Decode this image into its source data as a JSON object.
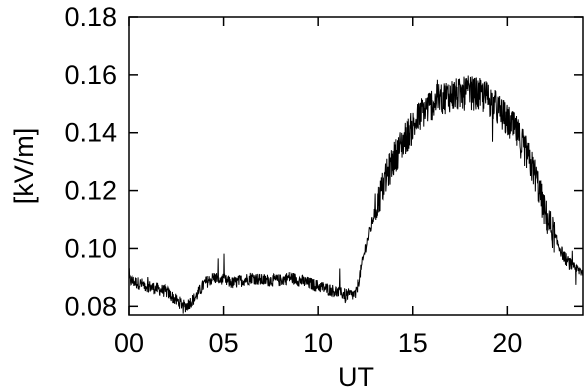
{
  "chart_data": {
    "type": "line",
    "title": "",
    "xlabel": "UT",
    "ylabel": "[kV/m]",
    "xlim": [
      0,
      24
    ],
    "ylim": [
      0.077,
      0.18
    ],
    "x_ticks": [
      0,
      5,
      10,
      15,
      20
    ],
    "x_tick_labels": [
      "00",
      "05",
      "10",
      "15",
      "20"
    ],
    "y_ticks": [
      0.08,
      0.1,
      0.12,
      0.14,
      0.16,
      0.18
    ],
    "y_tick_labels": [
      "0.08",
      "0.10",
      "0.12",
      "0.14",
      "0.16",
      "0.18"
    ],
    "grid": false,
    "line_color": "#000000",
    "series": [
      {
        "x": [
          0,
          0.5,
          1.0,
          1.5,
          2.0,
          2.5,
          3.0,
          3.5,
          4.0,
          4.5,
          5.0,
          5.5,
          6.0,
          6.5,
          7.0,
          7.5,
          8.0,
          8.5,
          9.0,
          9.5,
          10.0,
          10.5,
          11.0,
          11.5,
          12.0,
          12.5,
          13.0,
          13.5,
          14.0,
          14.5,
          15.0,
          15.5,
          16.0,
          16.5,
          17.0,
          17.5,
          18.0,
          18.5,
          19.0,
          19.5,
          20.0,
          20.5,
          21.0,
          21.5,
          22.0,
          22.5,
          23.0,
          23.5,
          24.0
        ],
        "values": [
          0.089,
          0.088,
          0.087,
          0.086,
          0.085,
          0.082,
          0.08,
          0.083,
          0.088,
          0.09,
          0.089,
          0.088,
          0.089,
          0.09,
          0.089,
          0.089,
          0.089,
          0.09,
          0.089,
          0.088,
          0.087,
          0.086,
          0.085,
          0.084,
          0.084,
          0.1,
          0.113,
          0.123,
          0.131,
          0.137,
          0.142,
          0.147,
          0.15,
          0.152,
          0.153,
          0.153,
          0.154,
          0.153,
          0.152,
          0.148,
          0.144,
          0.14,
          0.133,
          0.125,
          0.112,
          0.104,
          0.097,
          0.093,
          0.092
        ]
      }
    ]
  }
}
